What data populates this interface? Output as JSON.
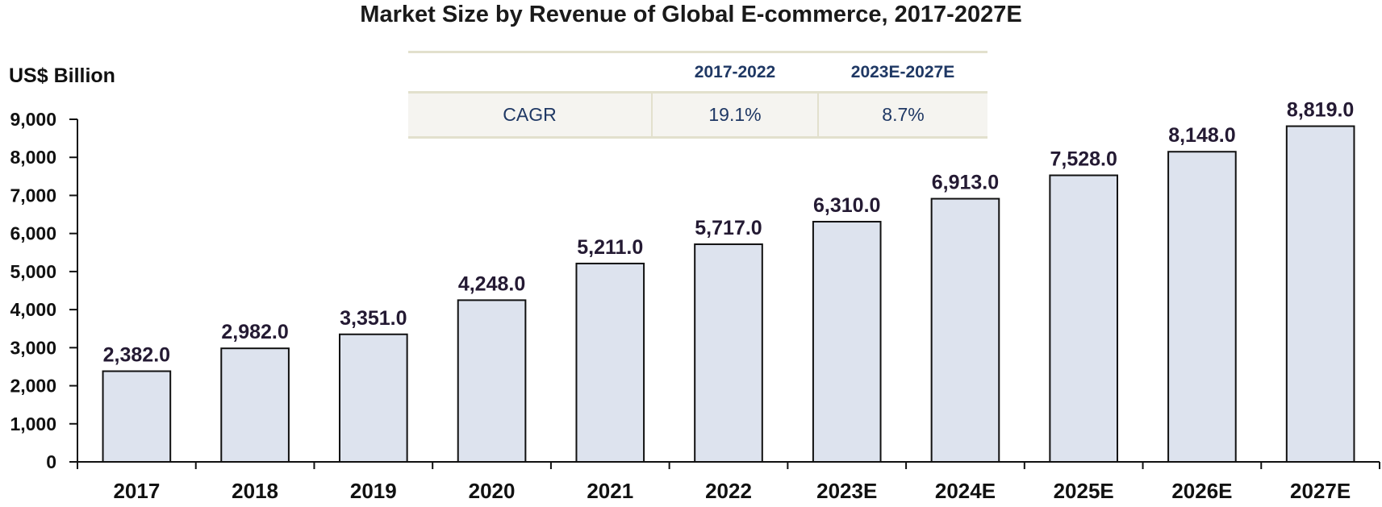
{
  "chart_data": {
    "type": "bar",
    "title": "Market Size by Revenue of Global E-commerce, 2017-2027E",
    "ylabel": "US$ Billion",
    "xlabel": "",
    "categories": [
      "2017",
      "2018",
      "2019",
      "2020",
      "2021",
      "2022",
      "2023E",
      "2024E",
      "2025E",
      "2026E",
      "2027E"
    ],
    "values": [
      2382.0,
      2982.0,
      3351.0,
      4248.0,
      5211.0,
      5717.0,
      6310.0,
      6913.0,
      7528.0,
      8148.0,
      8819.0
    ],
    "data_labels": [
      "2,382.0",
      "2,982.0",
      "3,351.0",
      "4,248.0",
      "5,211.0",
      "5,717.0",
      "6,310.0",
      "6,913.0",
      "7,528.0",
      "8,148.0",
      "8,819.0"
    ],
    "ylim": [
      0,
      9000
    ],
    "yticks": [
      0,
      1000,
      2000,
      3000,
      4000,
      5000,
      6000,
      7000,
      8000,
      9000
    ],
    "ytick_labels": [
      "0",
      "1,000",
      "2,000",
      "3,000",
      "4,000",
      "5,000",
      "6,000",
      "7,000",
      "8,000",
      "9,000"
    ],
    "grid": false,
    "legend": "none",
    "bar_color": "#dde3ee",
    "bar_edge_color": "#111111",
    "annotation_table": {
      "headers": [
        "",
        "2017-2022",
        "2023E-2027E"
      ],
      "rows": [
        {
          "label": "CAGR",
          "values": [
            "19.1%",
            "8.7%"
          ]
        }
      ]
    }
  }
}
